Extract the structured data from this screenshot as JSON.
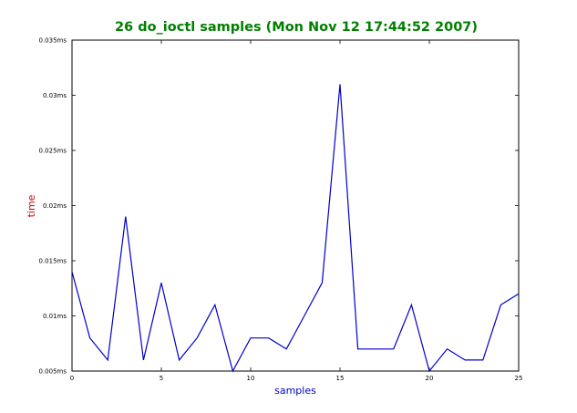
{
  "colors": {
    "title": "#008000",
    "xlabel": "#0000cc",
    "ylabel": "#cc0000",
    "line": "#0000cc",
    "axes": "#000000",
    "background": "#ffffff"
  },
  "chart_data": {
    "type": "line",
    "title": "26 do_ioctl samples (Mon Nov 12 17:44:52 2007)",
    "xlabel": "samples",
    "ylabel": "time",
    "xlim": [
      0,
      25
    ],
    "ylim": [
      0.005,
      0.035
    ],
    "grid": false,
    "x_ticks": [
      {
        "value": 0,
        "label": "0"
      },
      {
        "value": 5,
        "label": "5"
      },
      {
        "value": 10,
        "label": "10"
      },
      {
        "value": 15,
        "label": "15"
      },
      {
        "value": 20,
        "label": "20"
      },
      {
        "value": 25,
        "label": "25"
      }
    ],
    "y_ticks": [
      {
        "value": 0.005,
        "label": "0.005ms"
      },
      {
        "value": 0.01,
        "label": "0.01ms"
      },
      {
        "value": 0.015,
        "label": "0.015ms"
      },
      {
        "value": 0.02,
        "label": "0.02ms"
      },
      {
        "value": 0.025,
        "label": "0.025ms"
      },
      {
        "value": 0.03,
        "label": "0.03ms"
      },
      {
        "value": 0.035,
        "label": "0.035ms"
      }
    ],
    "x": [
      0,
      1,
      2,
      3,
      4,
      5,
      6,
      7,
      8,
      9,
      10,
      11,
      12,
      13,
      14,
      15,
      16,
      17,
      18,
      19,
      20,
      21,
      22,
      23,
      24,
      25
    ],
    "y": [
      0.014,
      0.008,
      0.006,
      0.019,
      0.006,
      0.013,
      0.006,
      0.008,
      0.011,
      0.005,
      0.008,
      0.008,
      0.007,
      0.01,
      0.013,
      0.031,
      0.007,
      0.007,
      0.007,
      0.011,
      0.005,
      0.007,
      0.006,
      0.006,
      0.011,
      0.012
    ]
  }
}
